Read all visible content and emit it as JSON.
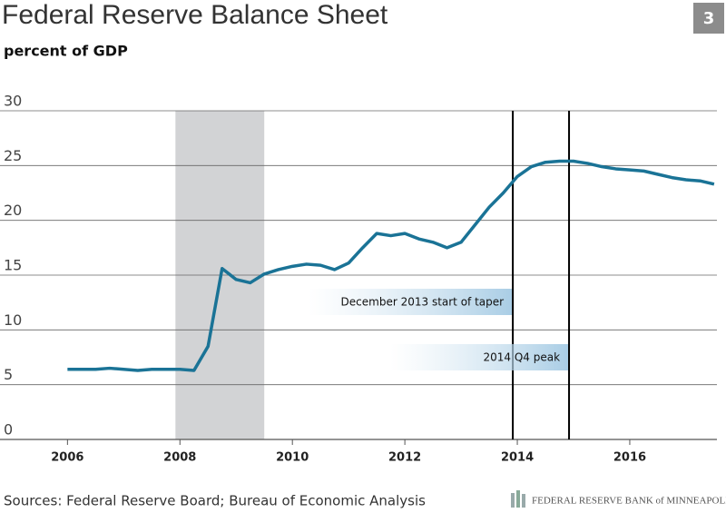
{
  "chart_data": {
    "type": "line",
    "title": "Federal Reserve Balance Sheet",
    "subtitle": "percent of GDP",
    "badge": "3",
    "source": "Sources: Federal Reserve Board; Bureau of Economic Analysis",
    "footer": "FEDERAL RESERVE BANK of MINNEAPOLIS",
    "x": [
      2006.0,
      2006.5,
      2006.75,
      2007.25,
      2007.5,
      2008.0,
      2008.25,
      2008.5,
      2008.75,
      2009.0,
      2009.25,
      2009.5,
      2009.75,
      2010.0,
      2010.25,
      2010.5,
      2010.75,
      2011.0,
      2011.25,
      2011.5,
      2011.75,
      2012.0,
      2012.25,
      2012.5,
      2012.75,
      2013.0,
      2013.25,
      2013.5,
      2013.75,
      2014.0,
      2014.25,
      2014.5,
      2014.75,
      2015.0,
      2015.25,
      2015.5,
      2015.75,
      2016.0,
      2016.25,
      2016.5,
      2016.75,
      2017.0,
      2017.25,
      2017.5
    ],
    "series": [
      {
        "name": "Federal Reserve balance sheet",
        "color": "#1a7396",
        "values": [
          6.4,
          6.4,
          6.5,
          6.3,
          6.4,
          6.4,
          6.3,
          8.5,
          15.6,
          14.6,
          14.3,
          15.1,
          15.5,
          15.8,
          16.0,
          15.9,
          15.5,
          16.1,
          17.5,
          18.8,
          18.6,
          18.8,
          18.3,
          18.0,
          17.5,
          18.0,
          19.6,
          21.2,
          22.5,
          24.0,
          24.9,
          25.3,
          25.4,
          25.4,
          25.2,
          24.9,
          24.7,
          24.6,
          24.5,
          24.2,
          23.9,
          23.7,
          23.6,
          23.3
        ]
      }
    ],
    "xlim": [
      2004.8,
      2017.55
    ],
    "xticks": [
      2006,
      2008,
      2010,
      2012,
      2014,
      2016
    ],
    "ylim": [
      0,
      30
    ],
    "yticks": [
      0,
      5,
      10,
      15,
      20,
      25,
      30
    ],
    "grid": true,
    "shaded": [
      2007.92,
      2009.5
    ],
    "vlines": [
      {
        "value": 2013.92,
        "label": "December 2013 start of taper"
      },
      {
        "value": 2014.92,
        "label": "2014 Q4 peak"
      }
    ]
  }
}
